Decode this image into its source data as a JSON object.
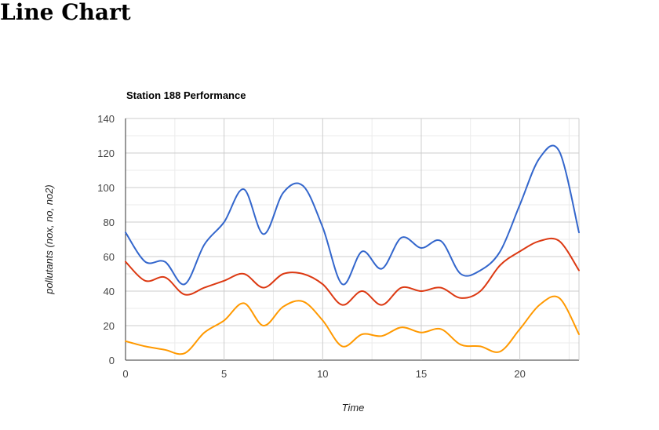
{
  "page": {
    "heading": "Line Chart"
  },
  "chart_data": {
    "type": "line",
    "title": "Station 188 Performance",
    "xlabel": "Time",
    "ylabel": "pollutants (nox, no, no2)",
    "xlim": [
      0,
      23
    ],
    "ylim": [
      0,
      140
    ],
    "x_ticks": [
      0,
      5,
      10,
      15,
      20
    ],
    "y_ticks": [
      0,
      20,
      40,
      60,
      80,
      100,
      120,
      140
    ],
    "grid": true,
    "legend": "none",
    "curve": "smooth",
    "x": [
      0,
      1,
      2,
      3,
      4,
      5,
      6,
      7,
      8,
      9,
      10,
      11,
      12,
      13,
      14,
      15,
      16,
      17,
      18,
      19,
      20,
      21,
      22,
      23
    ],
    "series": [
      {
        "color": "#3366cc",
        "values": [
          74,
          57,
          57,
          44,
          67,
          80,
          99,
          73,
          97,
          101,
          77,
          44,
          63,
          53,
          71,
          65,
          69,
          50,
          52,
          63,
          90,
          117,
          121,
          74
        ]
      },
      {
        "color": "#dc3912",
        "values": [
          57,
          46,
          48,
          38,
          42,
          46,
          50,
          42,
          50,
          50,
          44,
          32,
          40,
          32,
          42,
          40,
          42,
          36,
          40,
          55,
          63,
          69,
          69,
          52
        ]
      },
      {
        "color": "#ff9900",
        "values": [
          11,
          8,
          6,
          4,
          16,
          23,
          33,
          20,
          31,
          34,
          23,
          8,
          15,
          14,
          19,
          16,
          18,
          9,
          8,
          5,
          18,
          32,
          36,
          15
        ]
      }
    ]
  }
}
